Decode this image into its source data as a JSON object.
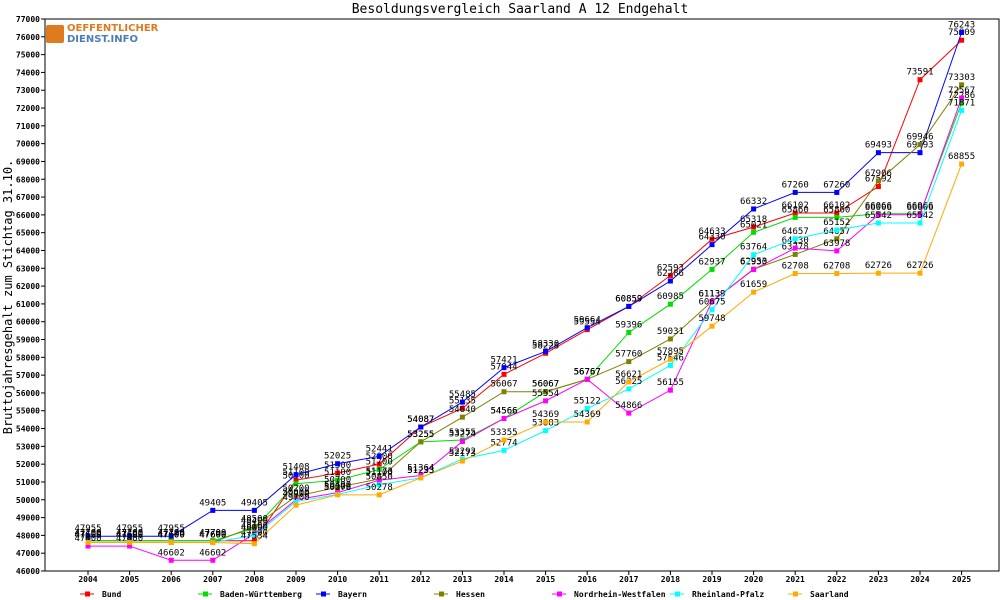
{
  "chart_data": {
    "type": "line",
    "title": "Besoldungsvergleich Saarland A 12 Endgehalt",
    "xlabel": "",
    "ylabel": "Bruttojahresgehalt zum Stichtag 31.10.",
    "ylim": [
      46000,
      77000
    ],
    "yticks": [
      46000,
      47000,
      48000,
      49000,
      50000,
      51000,
      52000,
      53000,
      54000,
      55000,
      56000,
      57000,
      58000,
      59000,
      60000,
      61000,
      62000,
      63000,
      64000,
      65000,
      66000,
      67000,
      68000,
      69000,
      70000,
      71000,
      72000,
      73000,
      74000,
      75000,
      76000,
      77000
    ],
    "categories": [
      "2004",
      "2005",
      "2006",
      "2007",
      "2008",
      "2009",
      "2010",
      "2011",
      "2012",
      "2013",
      "2014",
      "2015",
      "2016",
      "2017",
      "2018",
      "2019",
      "2020",
      "2021",
      "2022",
      "2023",
      "2024",
      "2025"
    ],
    "legend_position": "bottom",
    "grid": false,
    "series": [
      {
        "name": "Bund",
        "color": "#ff0000",
        "values": [
          47700,
          47700,
          47700,
          47700,
          47700,
          51100,
          51500,
          52000,
          54087,
          55135,
          57044,
          58228,
          59554,
          60859,
          62593,
          64633,
          65318,
          66102,
          66102,
          67592,
          73591,
          75809
        ]
      },
      {
        "name": "Baden-Württemberg",
        "color": "#00dd00",
        "values": [
          47700,
          47700,
          47700,
          47700,
          48400,
          50900,
          51100,
          51700,
          53255,
          53355,
          54566,
          56067,
          56767,
          59396,
          60985,
          62937,
          65021,
          65860,
          65860,
          66066,
          66066,
          72286
        ]
      },
      {
        "name": "Bayern",
        "color": "#0000ff",
        "values": [
          47955,
          47955,
          47955,
          49405,
          49405,
          51408,
          52025,
          52441,
          54087,
          55485,
          57421,
          58330,
          59664,
          60859,
          62286,
          64330,
          66332,
          67260,
          67260,
          69493,
          69493,
          76243
        ]
      },
      {
        "name": "Hessen",
        "color": "#808000",
        "values": [
          47600,
          47600,
          47600,
          47600,
          48500,
          50200,
          50700,
          51173,
          53255,
          54640,
          56067,
          56067,
          56767,
          57760,
          59031,
          61139,
          62953,
          63778,
          64657,
          67906,
          69946,
          73303
        ]
      },
      {
        "name": "Nordrhein-Westfalen",
        "color": "#ff00ff",
        "values": [
          47400,
          47400,
          46602,
          46602,
          48100,
          50000,
          50400,
          51100,
          51364,
          53274,
          54566,
          55554,
          56767,
          54866,
          56155,
          61139,
          62930,
          64130,
          63978,
          66006,
          66006,
          72567
        ]
      },
      {
        "name": "Rheinland-Pfalz",
        "color": "#00ffff",
        "values": [
          47600,
          47600,
          47600,
          47600,
          48000,
          49900,
          50300,
          50850,
          51233,
          52292,
          52774,
          53883,
          55122,
          56225,
          57546,
          60675,
          63764,
          64657,
          65152,
          65542,
          65542,
          71871
        ]
      },
      {
        "name": "Saarland",
        "color": "#ffaa00",
        "values": [
          47600,
          47600,
          47600,
          47600,
          47534,
          49700,
          50278,
          50278,
          51233,
          52173,
          53355,
          54369,
          54369,
          56621,
          57895,
          59748,
          61659,
          62708,
          62708,
          62726,
          62726,
          68855
        ]
      }
    ]
  },
  "logo": {
    "line1": "OEFFENTLICHER",
    "line2": "DIENST.INFO"
  }
}
